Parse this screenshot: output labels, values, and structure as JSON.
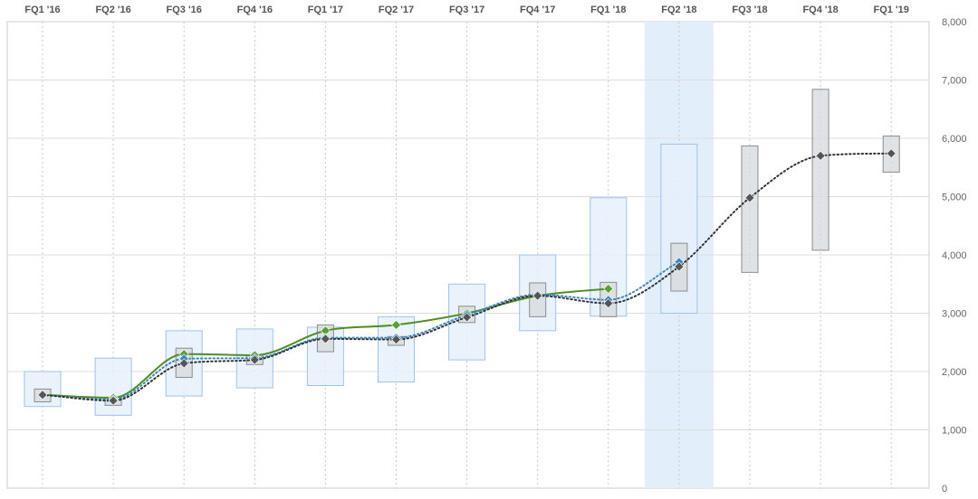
{
  "chart_data": {
    "type": "line",
    "categories": [
      "FQ1 '16",
      "FQ2 '16",
      "FQ3 '16",
      "FQ4 '16",
      "FQ1 '17",
      "FQ2 '17",
      "FQ3 '17",
      "FQ4 '17",
      "FQ1 '18",
      "FQ2 '18",
      "FQ3 '18",
      "FQ4 '18",
      "FQ1 '19"
    ],
    "ylim": [
      0,
      8000
    ],
    "yticks": [
      0,
      1000,
      2000,
      3000,
      4000,
      5000,
      6000,
      7000,
      8000
    ],
    "ytick_labels": [
      "0",
      "1,000",
      "2,000",
      "3,000",
      "4,000",
      "5,000",
      "6,000",
      "7,000",
      "8,000"
    ],
    "highlight_category": "FQ2 '18",
    "grid": true,
    "series": [
      {
        "values": [
          1600,
          1550,
          2300,
          2280,
          2700,
          2800,
          3000,
          3300,
          3420,
          null,
          null,
          null,
          null
        ],
        "color": "#4e8f1f",
        "style": "solid",
        "marker_color": "#5aa02c"
      },
      {
        "values": [
          1600,
          1520,
          2220,
          2230,
          2580,
          2580,
          2970,
          3320,
          3230,
          3880,
          null,
          null,
          null
        ],
        "color": "#3a87c8",
        "style": "dotted",
        "marker_color": "#3a87c8"
      },
      {
        "values": [
          1600,
          1500,
          2140,
          2200,
          2560,
          2550,
          2930,
          3300,
          3170,
          3800,
          4980,
          5700,
          5740
        ],
        "color": "#333333",
        "style": "dotted",
        "marker_color": "#555555"
      }
    ],
    "outer_ranges": [
      [
        1400,
        2000
      ],
      [
        1250,
        2230
      ],
      [
        1580,
        2700
      ],
      [
        1720,
        2730
      ],
      [
        1760,
        2760
      ],
      [
        1820,
        2940
      ],
      [
        2200,
        3500
      ],
      [
        2700,
        4000
      ],
      [
        2950,
        4980
      ],
      [
        3000,
        5900
      ],
      null,
      null,
      null
    ],
    "inner_ranges": [
      [
        1480,
        1700
      ],
      [
        1420,
        1560
      ],
      [
        1900,
        2400
      ],
      [
        2120,
        2280
      ],
      [
        2340,
        2800
      ],
      [
        2450,
        2600
      ],
      [
        2840,
        3120
      ],
      [
        2940,
        3520
      ],
      [
        2940,
        3530
      ],
      [
        3380,
        4200
      ],
      [
        3700,
        5870
      ],
      [
        4080,
        6840
      ],
      [
        5420,
        6040
      ]
    ],
    "colors": {
      "outer_fill": "#e6f0fb",
      "outer_stroke": "#9ec3e8",
      "inner_fill": "#d6d9dc",
      "inner_stroke": "#8c8c8c",
      "highlight": "#e3eefb",
      "grid": "#dddddd"
    }
  }
}
